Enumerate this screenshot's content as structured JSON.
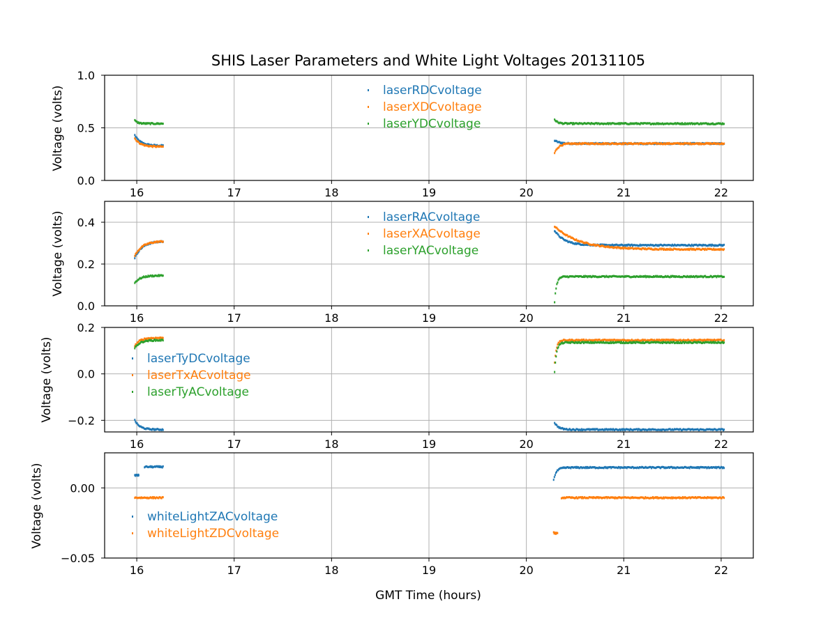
{
  "chart_data": {
    "type": "scatter",
    "title": "SHIS Laser Parameters and White Light Voltages 20131105",
    "xlabel": "GMT Time (hours)",
    "xlim": [
      15.67,
      22.33
    ],
    "xticks": [
      16,
      17,
      18,
      19,
      20,
      21,
      22
    ],
    "grid": true,
    "colors": {
      "blue": "#1f77b4",
      "orange": "#ff7f0e",
      "green": "#2ca02c"
    },
    "panels": [
      {
        "ylabel": "Voltage (volts)",
        "ylim": [
          0.0,
          1.0
        ],
        "yticks": [
          0.0,
          0.5,
          1.0
        ],
        "ytick_labels": [
          "0.0",
          "0.5",
          "1.0"
        ],
        "legend_position": "upper-center",
        "series": [
          {
            "name": "laserRDCvoltage",
            "color": "#1f77b4",
            "segments": [
              {
                "t_start": 15.98,
                "t_end": 16.27,
                "v_start": 0.43,
                "v_end": 0.33,
                "tau": 0.06
              },
              {
                "t_start": 20.29,
                "t_end": 22.03,
                "v_start": 0.38,
                "v_end": 0.35,
                "tau": 0.05
              }
            ]
          },
          {
            "name": "laserXDCvoltage",
            "color": "#ff7f0e",
            "segments": [
              {
                "t_start": 15.98,
                "t_end": 16.27,
                "v_start": 0.4,
                "v_end": 0.32,
                "tau": 0.06
              },
              {
                "t_start": 20.29,
                "t_end": 22.03,
                "v_start": 0.26,
                "v_end": 0.35,
                "tau": 0.04
              }
            ]
          },
          {
            "name": "laserYDCvoltage",
            "color": "#2ca02c",
            "segments": [
              {
                "t_start": 15.98,
                "t_end": 16.27,
                "v_start": 0.57,
                "v_end": 0.54,
                "tau": 0.03
              },
              {
                "t_start": 20.29,
                "t_end": 22.03,
                "v_start": 0.58,
                "v_end": 0.54,
                "tau": 0.03
              }
            ]
          }
        ]
      },
      {
        "ylabel": "Voltage (volts)",
        "ylim": [
          0.0,
          0.5
        ],
        "yticks": [
          0.0,
          0.2,
          0.4
        ],
        "ytick_labels": [
          "0.0",
          "0.2",
          "0.4"
        ],
        "legend_position": "upper-center",
        "series": [
          {
            "name": "laserRACvoltage",
            "color": "#1f77b4",
            "segments": [
              {
                "t_start": 15.98,
                "t_end": 16.27,
                "v_start": 0.23,
                "v_end": 0.31,
                "tau": 0.08
              },
              {
                "t_start": 20.29,
                "t_end": 22.03,
                "v_start": 0.36,
                "v_end": 0.29,
                "tau": 0.1
              }
            ]
          },
          {
            "name": "laserXACvoltage",
            "color": "#ff7f0e",
            "segments": [
              {
                "t_start": 15.98,
                "t_end": 16.27,
                "v_start": 0.24,
                "v_end": 0.31,
                "tau": 0.08
              },
              {
                "t_start": 20.29,
                "t_end": 22.03,
                "v_start": 0.38,
                "v_end": 0.27,
                "tau": 0.25
              }
            ]
          },
          {
            "name": "laserYACvoltage",
            "color": "#2ca02c",
            "segments": [
              {
                "t_start": 15.98,
                "t_end": 16.27,
                "v_start": 0.11,
                "v_end": 0.145,
                "tau": 0.06
              },
              {
                "t_start": 20.29,
                "t_end": 22.03,
                "v_start": 0.02,
                "v_end": 0.14,
                "tau": 0.02
              }
            ]
          }
        ]
      },
      {
        "ylabel": "Voltage (volts)",
        "ylim": [
          -0.25,
          0.2
        ],
        "yticks": [
          -0.2,
          0.0,
          0.2
        ],
        "ytick_labels": [
          "−0.2",
          "0.0",
          "0.2"
        ],
        "legend_position": "center-left",
        "series": [
          {
            "name": "laserTyDCvoltage",
            "color": "#1f77b4",
            "segments": [
              {
                "t_start": 15.98,
                "t_end": 16.27,
                "v_start": -0.2,
                "v_end": -0.24,
                "tau": 0.05
              },
              {
                "t_start": 20.29,
                "t_end": 22.03,
                "v_start": -0.21,
                "v_end": -0.24,
                "tau": 0.04
              }
            ]
          },
          {
            "name": "laserTxACvoltage",
            "color": "#ff7f0e",
            "segments": [
              {
                "t_start": 15.98,
                "t_end": 16.27,
                "v_start": 0.12,
                "v_end": 0.155,
                "tau": 0.05
              },
              {
                "t_start": 20.29,
                "t_end": 22.03,
                "v_start": 0.05,
                "v_end": 0.145,
                "tau": 0.02
              }
            ]
          },
          {
            "name": "laserTyACvoltage",
            "color": "#2ca02c",
            "segments": [
              {
                "t_start": 15.98,
                "t_end": 16.27,
                "v_start": 0.11,
                "v_end": 0.145,
                "tau": 0.05
              },
              {
                "t_start": 20.29,
                "t_end": 22.03,
                "v_start": 0.01,
                "v_end": 0.135,
                "tau": 0.02
              }
            ]
          }
        ]
      },
      {
        "ylabel": "Voltage (volts)",
        "ylim": [
          -0.05,
          0.025
        ],
        "yticks": [
          -0.05,
          0.0
        ],
        "ytick_labels": [
          "−0.05",
          "0.00"
        ],
        "legend_position": "lower-left",
        "series": [
          {
            "name": "whiteLightZACvoltage",
            "color": "#1f77b4",
            "segments": [
              {
                "t_start": 15.98,
                "t_end": 16.02,
                "v_start": 0.009,
                "v_end": 0.009,
                "tau": 0.05
              },
              {
                "t_start": 16.08,
                "t_end": 16.27,
                "v_start": 0.015,
                "v_end": 0.015,
                "tau": 0.05
              },
              {
                "t_start": 20.28,
                "t_end": 22.03,
                "v_start": 0.006,
                "v_end": 0.0145,
                "tau": 0.03
              }
            ]
          },
          {
            "name": "whiteLightZDCvoltage",
            "color": "#ff7f0e",
            "segments": [
              {
                "t_start": 15.98,
                "t_end": 16.27,
                "v_start": -0.007,
                "v_end": -0.007,
                "tau": 0.05
              },
              {
                "t_start": 20.28,
                "t_end": 20.32,
                "v_start": -0.032,
                "v_end": -0.033,
                "tau": 0.05
              },
              {
                "t_start": 20.36,
                "t_end": 22.03,
                "v_start": -0.007,
                "v_end": -0.007,
                "tau": 0.05
              }
            ]
          }
        ]
      }
    ]
  }
}
